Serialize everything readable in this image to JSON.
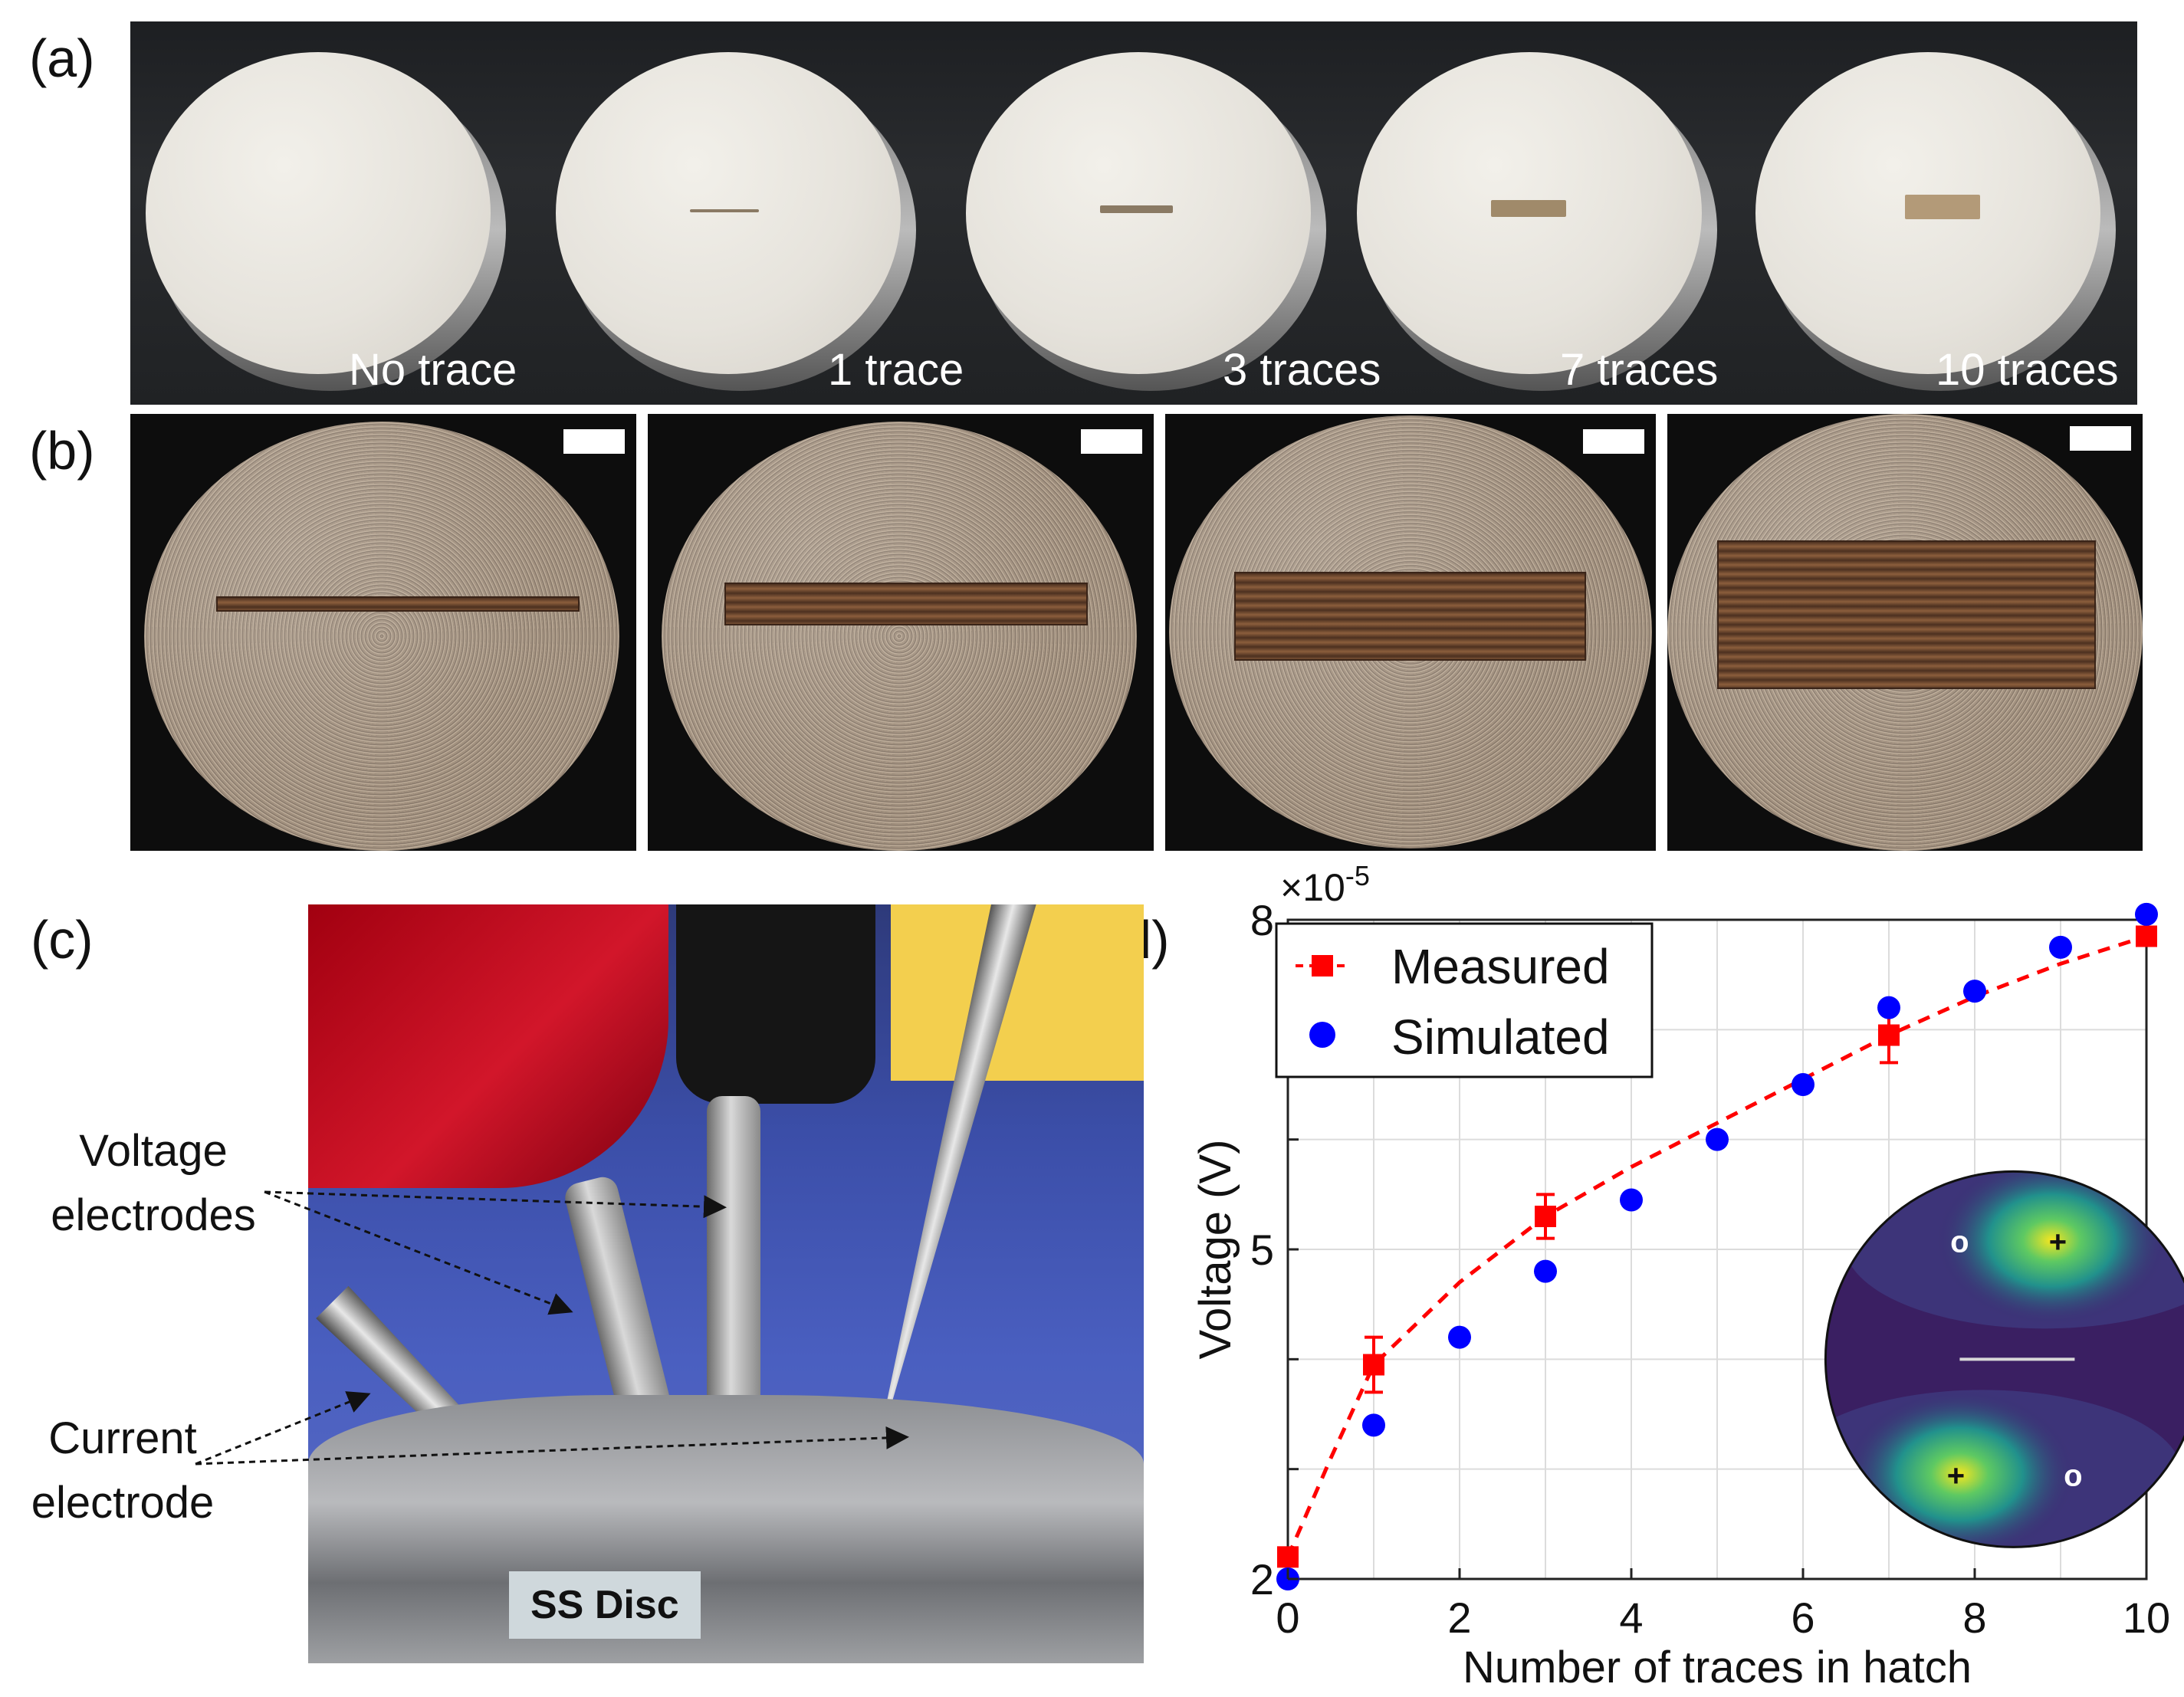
{
  "panel_labels": {
    "a": "(a)",
    "b": "(b)",
    "c": "(c)",
    "d": "(d)"
  },
  "panel_a": {
    "discs": [
      {
        "label": "No trace"
      },
      {
        "label": "1 trace"
      },
      {
        "label": "3 traces"
      },
      {
        "label": "7 traces"
      },
      {
        "label": "10 traces"
      }
    ]
  },
  "panel_c": {
    "voltage_label_line1": "Voltage",
    "voltage_label_line2": "electrodes",
    "current_label_line1": "Current",
    "current_label_line2": "electrode",
    "disc_label": "SS Disc"
  },
  "chart_data": {
    "type": "scatter",
    "xlabel": "Number of traces in hatch",
    "ylabel": "Voltage (V)",
    "exponent_label": "×10",
    "exponent_power": "-5",
    "xlim": [
      0,
      10
    ],
    "ylim": [
      2,
      8
    ],
    "x_ticks": [
      0,
      2,
      4,
      6,
      8,
      10
    ],
    "y_ticks_labeled": [
      2,
      5,
      8
    ],
    "grid": true,
    "legend_position": "top-left",
    "series": [
      {
        "name": "Measured",
        "color": "#ff0000",
        "marker": "square",
        "line": "dashed fit",
        "points": [
          {
            "x": 0,
            "y": 2.2,
            "err": 0.05
          },
          {
            "x": 1,
            "y": 3.95,
            "err": 0.25
          },
          {
            "x": 3,
            "y": 5.3,
            "err": 0.2
          },
          {
            "x": 7,
            "y": 6.95,
            "err": 0.25
          },
          {
            "x": 10,
            "y": 7.85,
            "err": 0.05
          }
        ],
        "fit": [
          [
            0,
            2.2
          ],
          [
            0.5,
            3.1
          ],
          [
            1,
            3.95
          ],
          [
            2,
            4.7
          ],
          [
            3,
            5.3
          ],
          [
            4,
            5.75
          ],
          [
            5,
            6.15
          ],
          [
            6,
            6.55
          ],
          [
            7,
            6.95
          ],
          [
            8,
            7.3
          ],
          [
            9,
            7.6
          ],
          [
            10,
            7.85
          ]
        ]
      },
      {
        "name": "Simulated",
        "color": "#0000ff",
        "marker": "circle",
        "points": [
          {
            "x": 0,
            "y": 2.0
          },
          {
            "x": 1,
            "y": 3.4
          },
          {
            "x": 2,
            "y": 4.2
          },
          {
            "x": 3,
            "y": 4.8
          },
          {
            "x": 4,
            "y": 5.45
          },
          {
            "x": 5,
            "y": 6.0
          },
          {
            "x": 6,
            "y": 6.5
          },
          {
            "x": 7,
            "y": 7.2
          },
          {
            "x": 8,
            "y": 7.35
          },
          {
            "x": 9,
            "y": 7.75
          },
          {
            "x": 10,
            "y": 8.05
          }
        ]
      }
    ],
    "inset": {
      "type": "heatmap",
      "description_markers": [
        "o",
        "+",
        "+",
        "o"
      ]
    }
  }
}
